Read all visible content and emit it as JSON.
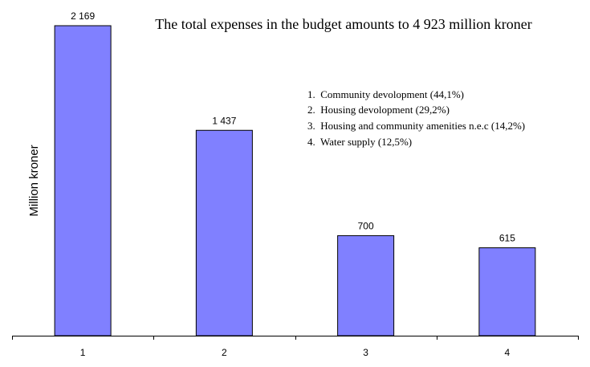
{
  "chart_data": {
    "type": "bar",
    "title": "The total expenses in the budget amounts to 4 923 million kroner",
    "xlabel": "",
    "ylabel": "Million kroner",
    "categories": [
      "1",
      "2",
      "3",
      "4"
    ],
    "values": [
      2169,
      1437,
      700,
      615
    ],
    "value_labels": [
      "2 169",
      "1 437",
      "700",
      "615"
    ],
    "ylim": [
      0,
      2169
    ],
    "bar_color": "#8080ff",
    "grid": false,
    "legend": [
      "1.  Community devolopment (44,1%)",
      "2.  Housing devolopment (29,2%)",
      "3.  Housing and community amenities n.e.c (14,2%)",
      "4.  Water supply (12,5%)"
    ]
  }
}
